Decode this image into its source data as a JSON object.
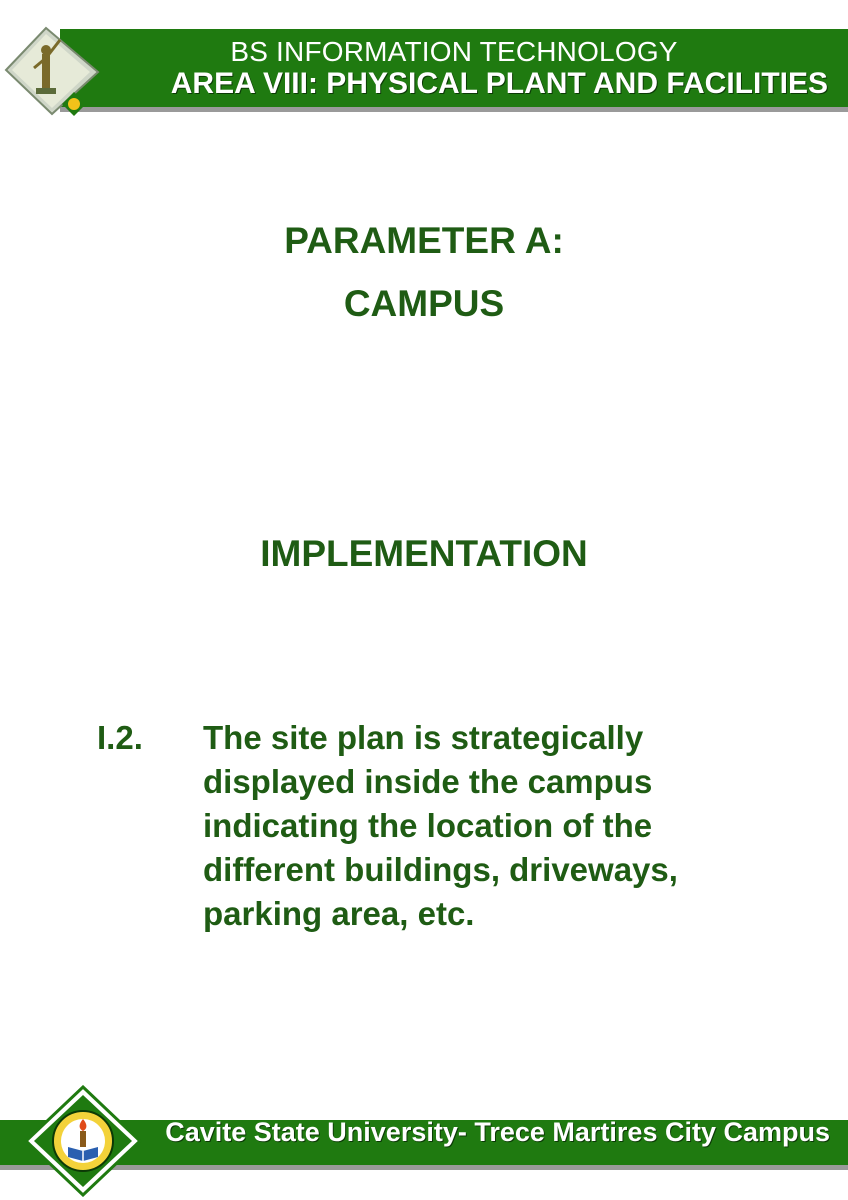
{
  "header": {
    "line1": "BS INFORMATION TECHNOLOGY",
    "line2": "AREA VIII: PHYSICAL PLANT AND FACILITIES"
  },
  "main": {
    "parameter": "PARAMETER A:",
    "subject": "CAMPUS",
    "section": "IMPLEMENTATION",
    "item": {
      "number": "I.2.",
      "lines": [
        "The site plan is strategically",
        "displayed inside the campus",
        "indicating the location of the",
        "different buildings, driveways,",
        "parking area, etc."
      ]
    }
  },
  "footer": {
    "text": "Cavite State University- Trece Martires City Campus"
  },
  "colors": {
    "band_green": "#1f7a10",
    "text_green": "#1f5c14",
    "shadow_gray": "#9a9a9a"
  },
  "icons": {
    "header_logo": "statue-emblem-icon",
    "footer_logo": "university-seal-icon"
  }
}
